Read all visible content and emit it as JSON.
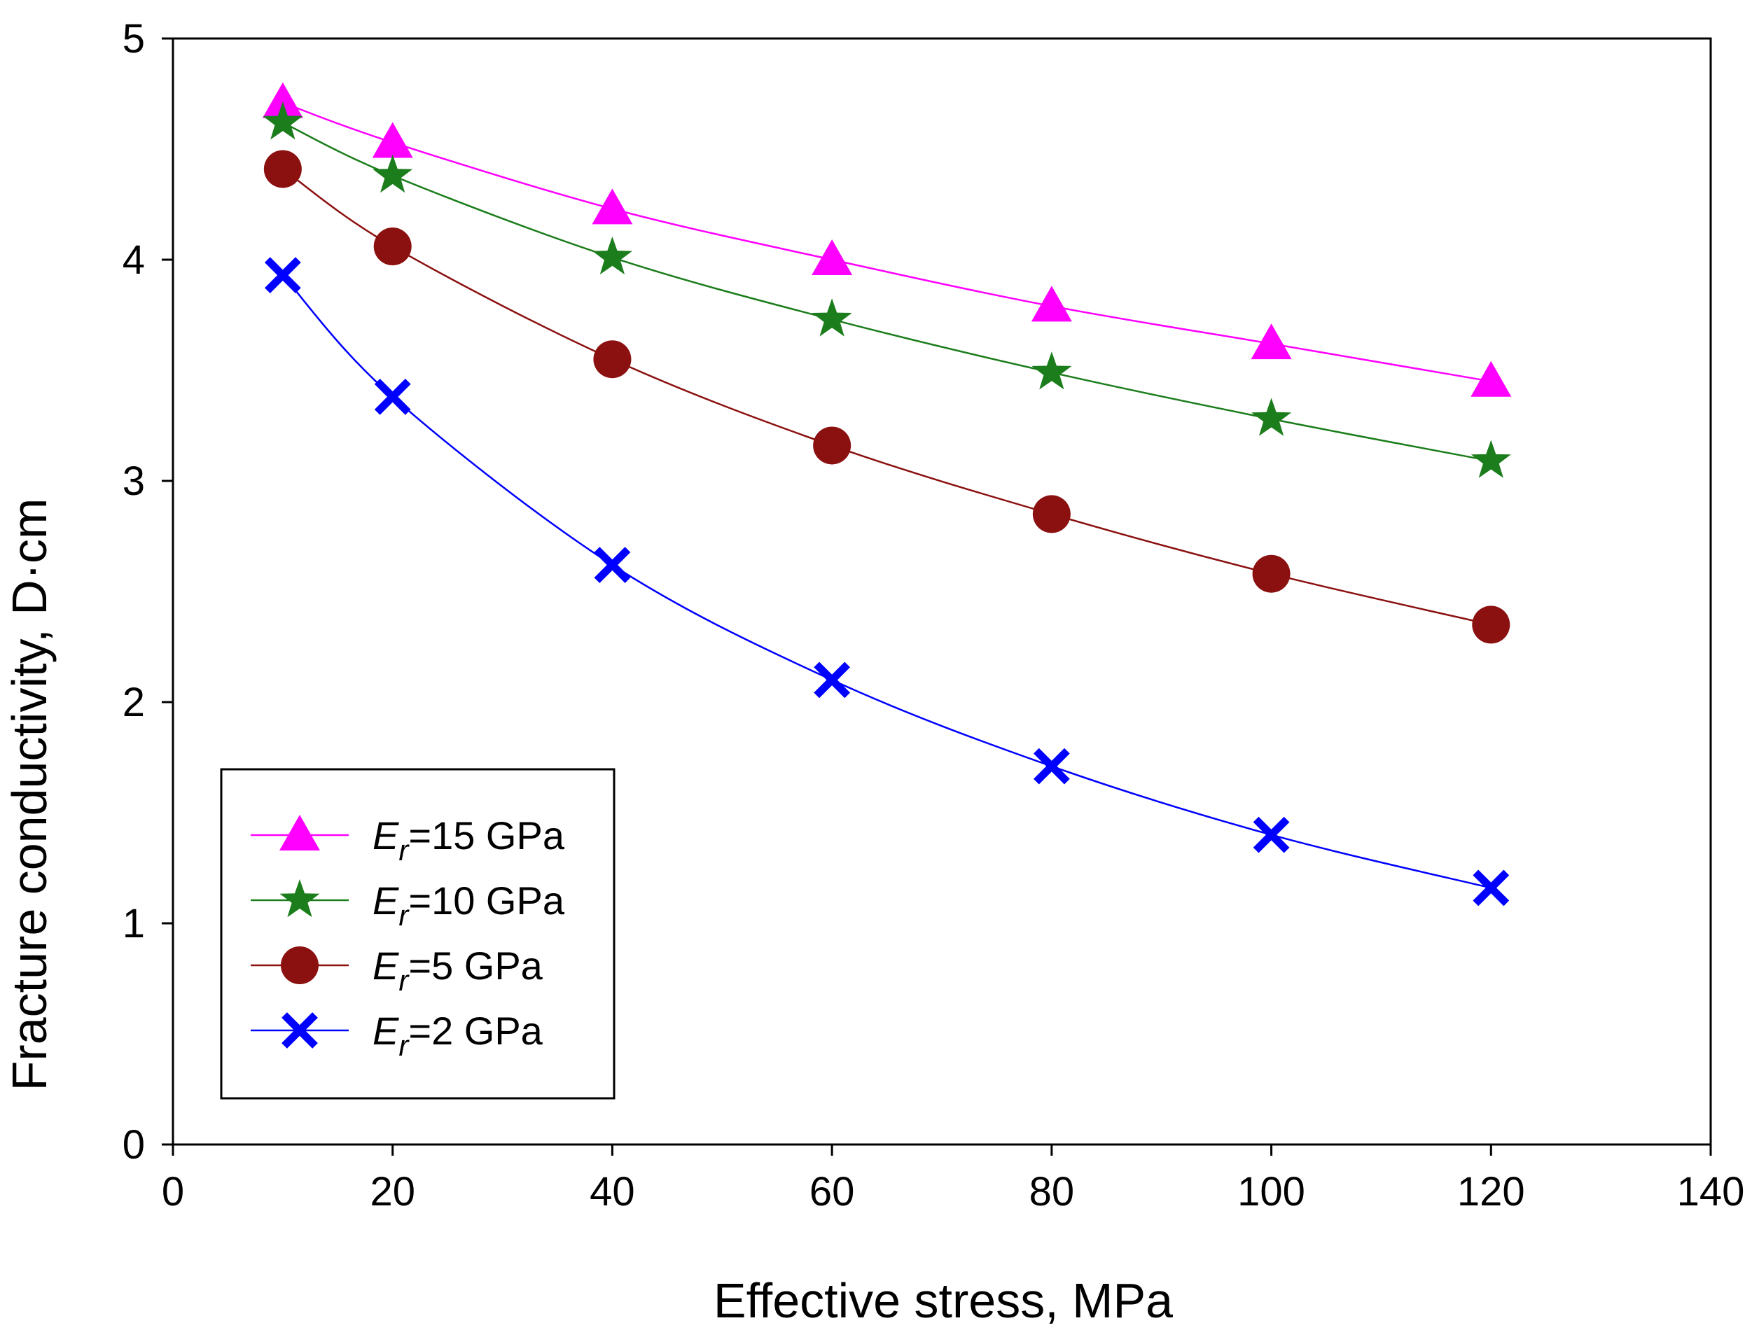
{
  "chart_data": {
    "type": "line",
    "title": "",
    "xlabel": "Effective stress, MPa",
    "ylabel": "Fracture conductivity, D·cm",
    "xlim": [
      0,
      140
    ],
    "ylim": [
      0,
      5
    ],
    "xticks": [
      0,
      20,
      40,
      60,
      80,
      100,
      120,
      140
    ],
    "yticks": [
      0,
      1,
      2,
      3,
      4,
      5
    ],
    "grid": false,
    "legend_position": "bottom-left",
    "x": [
      10,
      20,
      40,
      60,
      80,
      100,
      120
    ],
    "series": [
      {
        "name": "Er=15 GPa",
        "label_symbol": "E",
        "label_subscript": "r",
        "label_rest": "=15 GPa",
        "color": "#ff00ff",
        "line_color": "#ff00ff",
        "marker": "triangle",
        "values": [
          4.71,
          4.53,
          4.23,
          4.0,
          3.79,
          3.62,
          3.45
        ]
      },
      {
        "name": "Er=10 GPa",
        "label_symbol": "E",
        "label_subscript": "r",
        "label_rest": "=10 GPa",
        "color": "#1b7d1b",
        "line_color": "#1b7d1b",
        "marker": "star",
        "values": [
          4.62,
          4.38,
          4.01,
          3.73,
          3.49,
          3.28,
          3.09
        ]
      },
      {
        "name": "Er=5 GPa",
        "label_symbol": "E",
        "label_subscript": "r",
        "label_rest": "=5 GPa",
        "color": "#8b1010",
        "line_color": "#8b1010",
        "marker": "circle",
        "values": [
          4.41,
          4.06,
          3.55,
          3.16,
          2.85,
          2.58,
          2.35
        ]
      },
      {
        "name": "Er=2 GPa",
        "label_symbol": "E",
        "label_subscript": "r",
        "label_rest": "=2 GPa",
        "color": "#0000ff",
        "line_color": "#0000ff",
        "marker": "x",
        "values": [
          3.93,
          3.38,
          2.62,
          2.1,
          1.71,
          1.4,
          1.16
        ]
      }
    ]
  }
}
